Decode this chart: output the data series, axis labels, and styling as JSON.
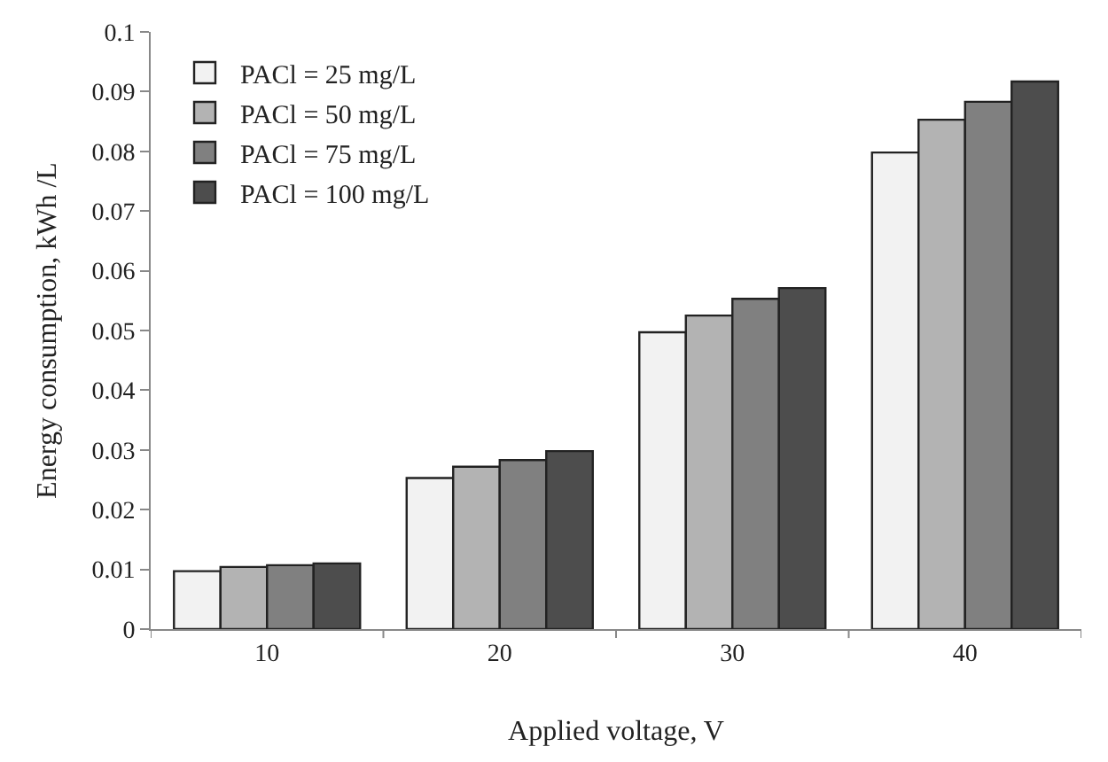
{
  "chart_data": {
    "type": "bar",
    "xlabel": "Applied voltage, V",
    "ylabel": "Energy consumption, kWh /L",
    "categories": [
      "10",
      "20",
      "30",
      "40"
    ],
    "series": [
      {
        "name": "PACl = 25 mg/L",
        "color": "#f2f2f2",
        "values": [
          0.0097,
          0.0253,
          0.0497,
          0.0798
        ]
      },
      {
        "name": "PACl = 50 mg/L",
        "color": "#b3b3b3",
        "values": [
          0.0104,
          0.0272,
          0.0525,
          0.0853
        ]
      },
      {
        "name": "PACl = 75 mg/L",
        "color": "#808080",
        "values": [
          0.0107,
          0.0283,
          0.0553,
          0.0883
        ]
      },
      {
        "name": "PACl = 100 mg/L",
        "color": "#4d4d4d",
        "values": [
          0.011,
          0.0298,
          0.0571,
          0.0917
        ]
      }
    ],
    "ylim": [
      0,
      0.1
    ],
    "yticks": [
      0,
      0.01,
      0.02,
      0.03,
      0.04,
      0.05,
      0.06,
      0.07,
      0.08,
      0.09,
      0.1
    ],
    "grid": false,
    "legend": "top left"
  }
}
